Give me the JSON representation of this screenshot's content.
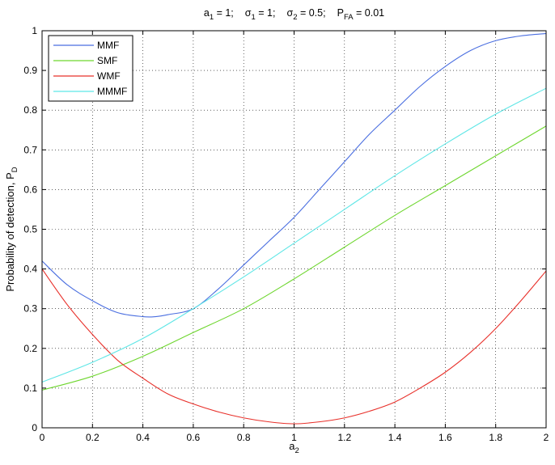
{
  "chart_data": {
    "type": "line",
    "title": {
      "parts": [
        {
          "main": "a",
          "sub": "1",
          "rest": " = 1;"
        },
        {
          "main": "σ",
          "sub": "1",
          "rest": " = 1;"
        },
        {
          "main": "σ",
          "sub": "2",
          "rest": " = 0.5;"
        },
        {
          "main": "P",
          "sub": "FA",
          "rest": " = 0.01"
        }
      ]
    },
    "xlabel": {
      "main": "a",
      "sub": "2"
    },
    "ylabel": {
      "main": "Probability of detection, P",
      "sub": "D"
    },
    "xlim": [
      0,
      2
    ],
    "ylim": [
      0,
      1
    ],
    "xticks": [
      0,
      0.2,
      0.4,
      0.6,
      0.8,
      1,
      1.2,
      1.4,
      1.6,
      1.8,
      2
    ],
    "xtick_labels": [
      "0",
      "0.2",
      "0.4",
      "0.6",
      "0.8",
      "1",
      "1.2",
      "1.4",
      "1.6",
      "1.8",
      "2"
    ],
    "yticks": [
      0,
      0.1,
      0.2,
      0.3,
      0.4,
      0.5,
      0.6,
      0.7,
      0.8,
      0.9,
      1
    ],
    "ytick_labels": [
      "0",
      "0.1",
      "0.2",
      "0.3",
      "0.4",
      "0.5",
      "0.6",
      "0.7",
      "0.8",
      "0.9",
      "1"
    ],
    "grid": true,
    "legend_position": "top-left",
    "series": [
      {
        "name": "MMF",
        "color": "#4a6ee0",
        "x": [
          0,
          0.1,
          0.2,
          0.3,
          0.4,
          0.45,
          0.5,
          0.6,
          0.7,
          0.8,
          0.9,
          1.0,
          1.1,
          1.2,
          1.3,
          1.4,
          1.5,
          1.6,
          1.7,
          1.8,
          1.9,
          2.0
        ],
        "y": [
          0.42,
          0.36,
          0.32,
          0.29,
          0.28,
          0.28,
          0.285,
          0.3,
          0.35,
          0.41,
          0.47,
          0.53,
          0.6,
          0.67,
          0.74,
          0.8,
          0.86,
          0.91,
          0.95,
          0.975,
          0.987,
          0.993
        ]
      },
      {
        "name": "SMF",
        "color": "#6ed62e",
        "x": [
          0,
          0.2,
          0.4,
          0.6,
          0.8,
          1.0,
          1.2,
          1.4,
          1.6,
          1.8,
          2.0
        ],
        "y": [
          0.095,
          0.13,
          0.18,
          0.24,
          0.3,
          0.375,
          0.455,
          0.535,
          0.61,
          0.685,
          0.76
        ]
      },
      {
        "name": "WMF",
        "color": "#e8302a",
        "x": [
          0,
          0.1,
          0.2,
          0.3,
          0.4,
          0.5,
          0.6,
          0.7,
          0.8,
          0.9,
          1.0,
          1.1,
          1.2,
          1.3,
          1.4,
          1.5,
          1.6,
          1.7,
          1.8,
          1.9,
          2.0
        ],
        "y": [
          0.4,
          0.31,
          0.235,
          0.17,
          0.125,
          0.085,
          0.06,
          0.04,
          0.025,
          0.015,
          0.01,
          0.015,
          0.025,
          0.042,
          0.065,
          0.1,
          0.14,
          0.19,
          0.25,
          0.32,
          0.395
        ]
      },
      {
        "name": "MMMF",
        "color": "#5ee6e6",
        "x": [
          0,
          0.2,
          0.4,
          0.6,
          0.8,
          1.0,
          1.2,
          1.4,
          1.6,
          1.8,
          2.0
        ],
        "y": [
          0.115,
          0.165,
          0.225,
          0.3,
          0.38,
          0.465,
          0.55,
          0.635,
          0.715,
          0.79,
          0.855
        ]
      }
    ]
  }
}
